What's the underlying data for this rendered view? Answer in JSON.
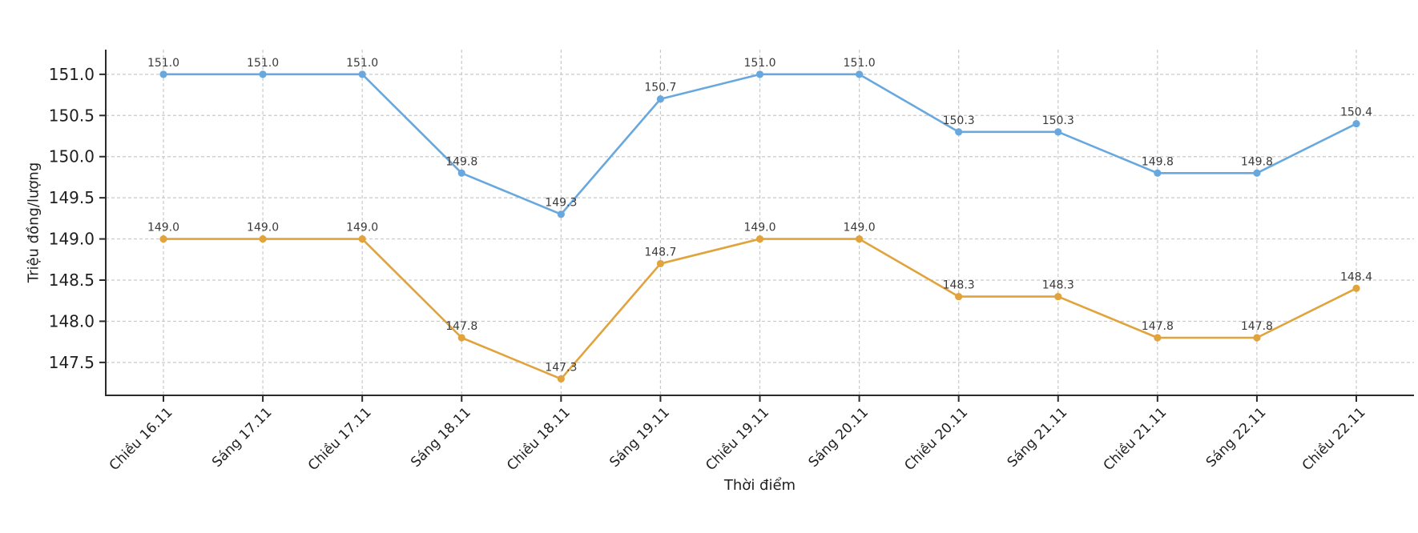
{
  "chart_data": {
    "type": "line",
    "title": "",
    "xlabel": "Thời điểm",
    "ylabel": "Triệu đồng/lượng",
    "categories": [
      "Chiều 16.11",
      "Sáng 17.11",
      "Chiều 17.11",
      "Sáng 18.11",
      "Chiều 18.11",
      "Sáng 19.11",
      "Chiều 19.11",
      "Sáng 20.11",
      "Chiều 20.11",
      "Sáng 21.11",
      "Chiều 21.11",
      "Sáng 22.11",
      "Chiều 22.11"
    ],
    "series": [
      {
        "color": "#68a8de",
        "marker": "circle",
        "values": [
          151.0,
          151.0,
          151.0,
          149.8,
          149.3,
          150.7,
          151.0,
          151.0,
          150.3,
          150.3,
          149.8,
          149.8,
          150.4
        ]
      },
      {
        "color": "#e1a33c",
        "marker": "circle",
        "values": [
          149.0,
          149.0,
          149.0,
          147.8,
          147.3,
          148.7,
          149.0,
          149.0,
          148.3,
          148.3,
          147.8,
          147.8,
          148.4
        ]
      }
    ],
    "yticks": [
      147.5,
      148.0,
      148.5,
      149.0,
      149.5,
      150.0,
      150.5,
      151.0
    ],
    "ylim": [
      147.1,
      151.3
    ],
    "grid": true,
    "grid_style": "dashed",
    "legend": false,
    "point_labels": true,
    "colors": {
      "grid": "#c9c9c9",
      "axis": "#2b2b2b",
      "tick_label": "#1f1f1f",
      "point_label": "#3a3a3a",
      "background": "#ffffff"
    }
  }
}
